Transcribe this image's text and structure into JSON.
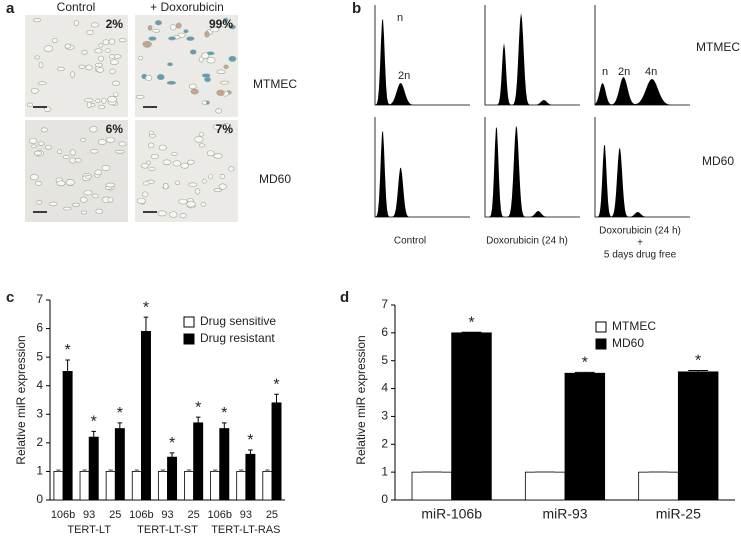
{
  "panel_a": {
    "panel_label": "a",
    "columns": [
      "Control",
      "+ Doxorubicin"
    ],
    "rows": [
      "MTMEC",
      "MD60"
    ],
    "percentages": [
      [
        "2%",
        "99%"
      ],
      [
        "6%",
        "7%"
      ]
    ]
  },
  "panel_b": {
    "panel_label": "b",
    "rows": [
      "MTMEC",
      "MD60"
    ],
    "peak_labels": [
      [
        "n",
        "2n"
      ],
      [
        "n",
        "2n",
        "4n"
      ]
    ],
    "columns": [
      "Control",
      "Doxorubicin (24 h)",
      "Doxorubicin (24 h)"
    ],
    "column_note": [
      "+",
      "5 days drug free"
    ]
  },
  "chart_data": [
    {
      "type": "bar",
      "panel_label": "c",
      "y_label": "Relative miR expression",
      "categories": [
        "106b",
        "93",
        "25",
        "106b",
        "93",
        "25",
        "106b",
        "93",
        "25"
      ],
      "groups": [
        "TERT-LT",
        "TERT-LT-ST",
        "TERT-LT-RAS"
      ],
      "series": [
        {
          "name": "Drug sensitive",
          "color": "#ffffff",
          "values": [
            1,
            1,
            1,
            1,
            1,
            1,
            1,
            1,
            1
          ],
          "errors": [
            0.05,
            0.05,
            0.05,
            0.05,
            0.05,
            0.05,
            0.05,
            0.05,
            0.05
          ]
        },
        {
          "name": "Drug resistant",
          "color": "#000000",
          "values": [
            4.5,
            2.2,
            2.5,
            5.9,
            1.5,
            2.7,
            2.5,
            1.6,
            3.4
          ],
          "errors": [
            0.4,
            0.2,
            0.2,
            0.5,
            0.15,
            0.2,
            0.2,
            0.15,
            0.3
          ],
          "significance": [
            "*",
            "*",
            "*",
            "*",
            "*",
            "*",
            "*",
            "*",
            "*"
          ]
        }
      ],
      "ylim": [
        0,
        7
      ],
      "yticks": [
        0,
        1,
        2,
        3,
        4,
        5,
        6,
        7
      ],
      "grid": false
    },
    {
      "type": "bar",
      "panel_label": "d",
      "y_label": "Relative miR expression",
      "categories": [
        "miR-106b",
        "miR-93",
        "miR-25"
      ],
      "series": [
        {
          "name": "MTMEC",
          "color": "#ffffff",
          "values": [
            1,
            1,
            1
          ],
          "errors": [
            0.01,
            0.01,
            0.01
          ]
        },
        {
          "name": "MD60",
          "color": "#000000",
          "values": [
            6.0,
            4.55,
            4.6
          ],
          "errors": [
            0.02,
            0.03,
            0.05
          ],
          "significance": [
            "*",
            "*",
            "*"
          ]
        }
      ],
      "ylim": [
        0,
        7
      ],
      "yticks": [
        0,
        1,
        2,
        3,
        4,
        5,
        6,
        7
      ],
      "grid": false
    }
  ]
}
